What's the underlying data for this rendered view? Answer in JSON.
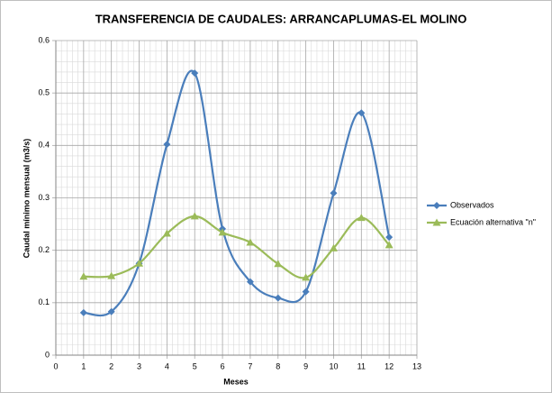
{
  "chart_data": {
    "type": "line",
    "title": "TRANSFERENCIA DE  CAUDALES: ARRANCAPLUMAS-EL MOLINO",
    "x_label": "Meses",
    "y_label": "Caudal mínimo mensual (m3/s)",
    "x": [
      1,
      2,
      3,
      4,
      5,
      6,
      7,
      8,
      9,
      10,
      11,
      12
    ],
    "series": [
      {
        "name": "Observados",
        "color": "#4a7ebb",
        "marker": "diamond",
        "values": [
          0.081,
          0.083,
          0.175,
          0.402,
          0.538,
          0.241,
          0.14,
          0.109,
          0.121,
          0.309,
          0.462,
          0.225
        ]
      },
      {
        "name": "Ecuación alternativa \"n\"",
        "color": "#9bbb59",
        "marker": "triangle",
        "values": [
          0.15,
          0.151,
          0.175,
          0.232,
          0.265,
          0.234,
          0.215,
          0.174,
          0.148,
          0.204,
          0.262,
          0.21
        ]
      }
    ],
    "xlim": [
      0,
      13
    ],
    "xticks": [
      0,
      1,
      2,
      3,
      4,
      5,
      6,
      7,
      8,
      9,
      10,
      11,
      12,
      13
    ],
    "ylim": [
      0,
      0.6
    ],
    "yticks": [
      0,
      0.1,
      0.2,
      0.3,
      0.4,
      0.5,
      0.6
    ],
    "grid": true,
    "smooth": true,
    "legend": "right"
  }
}
